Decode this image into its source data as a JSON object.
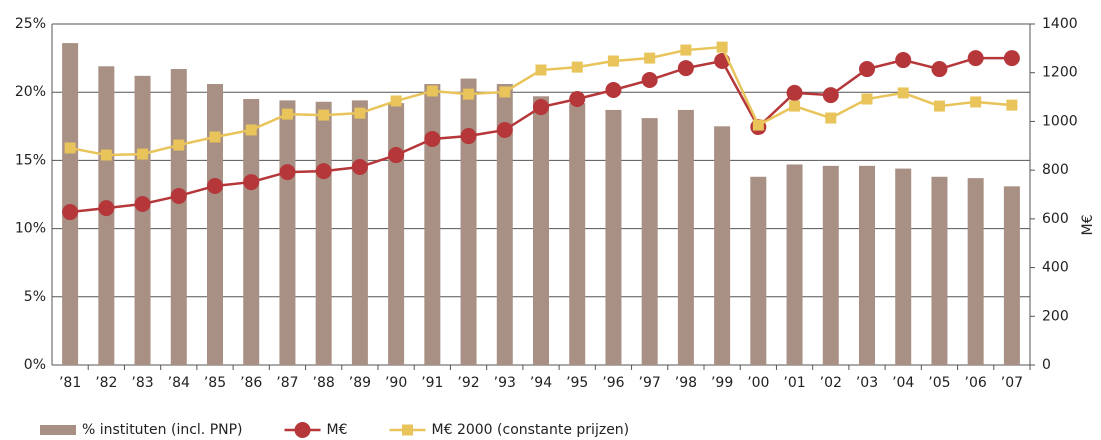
{
  "chart_data": {
    "type": "bar",
    "y2_label": "M€",
    "categories": [
      "’81",
      "’82",
      "’83",
      "’84",
      "’85",
      "’86",
      "’87",
      "’88",
      "’89",
      "’90",
      "’91",
      "’92",
      "’93",
      "’94",
      "’95",
      "’96",
      "’97",
      "’98",
      "’99",
      "’00",
      "’01",
      "’02",
      "’03",
      "’04",
      "’05",
      "’06",
      "’07"
    ],
    "series": [
      {
        "name": "% instituten (incl. PNP)",
        "type": "bar",
        "color": "#a89084",
        "values": [
          23.6,
          21.9,
          21.2,
          21.7,
          20.6,
          19.5,
          19.4,
          19.3,
          19.4,
          19.2,
          20.6,
          21.0,
          20.6,
          19.7,
          19.2,
          18.7,
          18.1,
          18.7,
          17.5,
          13.8,
          14.7,
          14.6,
          14.6,
          14.4,
          13.8,
          13.7,
          13.1
        ]
      },
      {
        "name": "M€",
        "type": "line",
        "marker": "circle",
        "axis": "y2",
        "color": "#b5373a",
        "values": [
          628,
          644,
          661,
          694,
          735,
          751,
          792,
          796,
          813,
          862,
          928,
          940,
          965,
          1059,
          1092,
          1129,
          1170,
          1219,
          1248,
          977,
          1117,
          1108,
          1215,
          1252,
          1215,
          1260,
          1260
        ]
      },
      {
        "name": "M€ 2000 (constante prijzen)",
        "type": "line",
        "marker": "square",
        "axis": "y2",
        "color": "#e8c45a",
        "values": [
          891,
          862,
          866,
          903,
          936,
          965,
          1030,
          1026,
          1034,
          1084,
          1125,
          1112,
          1121,
          1211,
          1223,
          1248,
          1260,
          1293,
          1305,
          985,
          1063,
          1014,
          1092,
          1117,
          1063,
          1080,
          1067
        ]
      }
    ],
    "ylim": [
      0,
      25
    ],
    "yticks": [
      {
        "value": 0,
        "label": "0%"
      },
      {
        "value": 5,
        "label": "5%"
      },
      {
        "value": 10,
        "label": "10%"
      },
      {
        "value": 15,
        "label": "15%"
      },
      {
        "value": 20,
        "label": "20%"
      },
      {
        "value": 25,
        "label": "25%"
      }
    ],
    "y2lim": [
      0,
      1400
    ],
    "y2ticks": [
      0,
      200,
      400,
      600,
      800,
      1000,
      1200,
      1400
    ],
    "grid": true
  }
}
